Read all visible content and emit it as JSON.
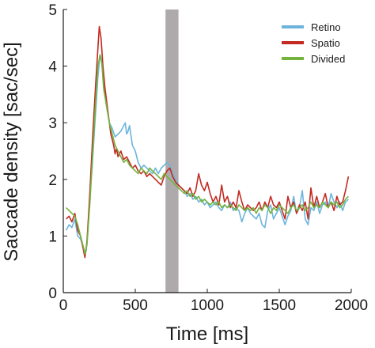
{
  "chart_data": {
    "type": "line",
    "xlabel": "Time [ms]",
    "ylabel": "Saccade density [sac/sec]",
    "xlim": [
      0,
      2000
    ],
    "ylim": [
      0,
      5
    ],
    "xticks": [
      0,
      500,
      1000,
      1500,
      2000
    ],
    "yticks": [
      0,
      1,
      2,
      3,
      4,
      5
    ],
    "shaded_region": {
      "x_start": 710,
      "x_end": 800,
      "color": "#aeaaab"
    },
    "grid": false,
    "legend_position": "top-right",
    "series": [
      {
        "name": "Retino",
        "color": "#6db4dc",
        "points": [
          [
            20,
            1.1
          ],
          [
            40,
            1.2
          ],
          [
            60,
            1.15
          ],
          [
            80,
            1.3
          ],
          [
            100,
            1.0
          ],
          [
            120,
            0.95
          ],
          [
            140,
            0.8
          ],
          [
            150,
            0.7
          ],
          [
            160,
            0.75
          ],
          [
            180,
            1.5
          ],
          [
            200,
            2.2
          ],
          [
            220,
            3.0
          ],
          [
            240,
            3.8
          ],
          [
            255,
            4.2
          ],
          [
            265,
            4.1
          ],
          [
            280,
            3.7
          ],
          [
            300,
            3.3
          ],
          [
            320,
            3.0
          ],
          [
            340,
            2.9
          ],
          [
            360,
            2.75
          ],
          [
            380,
            2.8
          ],
          [
            400,
            2.85
          ],
          [
            420,
            2.95
          ],
          [
            430,
            3.0
          ],
          [
            440,
            2.8
          ],
          [
            450,
            2.85
          ],
          [
            460,
            2.95
          ],
          [
            480,
            2.6
          ],
          [
            500,
            2.5
          ],
          [
            520,
            2.3
          ],
          [
            540,
            2.2
          ],
          [
            560,
            2.25
          ],
          [
            580,
            2.2
          ],
          [
            600,
            2.15
          ],
          [
            620,
            2.1
          ],
          [
            640,
            2.2
          ],
          [
            660,
            2.1
          ],
          [
            680,
            2.2
          ],
          [
            700,
            2.25
          ],
          [
            720,
            2.3
          ],
          [
            740,
            2.25
          ],
          [
            760,
            2.1
          ],
          [
            780,
            2.0
          ],
          [
            800,
            1.9
          ],
          [
            820,
            1.85
          ],
          [
            840,
            1.8
          ],
          [
            860,
            1.7
          ],
          [
            880,
            1.75
          ],
          [
            900,
            1.65
          ],
          [
            920,
            1.7
          ],
          [
            940,
            1.6
          ],
          [
            960,
            1.65
          ],
          [
            980,
            1.55
          ],
          [
            1000,
            1.6
          ],
          [
            1020,
            1.5
          ],
          [
            1040,
            1.55
          ],
          [
            1060,
            1.6
          ],
          [
            1080,
            1.5
          ],
          [
            1100,
            1.45
          ],
          [
            1120,
            1.55
          ],
          [
            1140,
            1.5
          ],
          [
            1160,
            1.6
          ],
          [
            1180,
            1.45
          ],
          [
            1200,
            1.5
          ],
          [
            1220,
            1.45
          ],
          [
            1240,
            1.25
          ],
          [
            1260,
            1.4
          ],
          [
            1280,
            1.5
          ],
          [
            1300,
            1.4
          ],
          [
            1320,
            1.35
          ],
          [
            1340,
            1.3
          ],
          [
            1360,
            1.4
          ],
          [
            1380,
            1.2
          ],
          [
            1400,
            1.15
          ],
          [
            1410,
            1.3
          ],
          [
            1420,
            1.45
          ],
          [
            1440,
            1.55
          ],
          [
            1460,
            1.3
          ],
          [
            1480,
            1.4
          ],
          [
            1500,
            1.5
          ],
          [
            1520,
            1.35
          ],
          [
            1540,
            1.2
          ],
          [
            1560,
            1.35
          ],
          [
            1580,
            1.45
          ],
          [
            1600,
            1.7
          ],
          [
            1620,
            1.4
          ],
          [
            1640,
            1.5
          ],
          [
            1660,
            1.8
          ],
          [
            1680,
            1.3
          ],
          [
            1700,
            1.2
          ],
          [
            1720,
            1.5
          ],
          [
            1740,
            1.45
          ],
          [
            1760,
            1.6
          ],
          [
            1780,
            1.4
          ],
          [
            1800,
            1.55
          ],
          [
            1820,
            1.6
          ],
          [
            1840,
            1.5
          ],
          [
            1860,
            1.75
          ],
          [
            1880,
            1.6
          ],
          [
            1900,
            1.5
          ],
          [
            1920,
            1.6
          ],
          [
            1940,
            1.45
          ],
          [
            1960,
            1.6
          ],
          [
            1980,
            1.65
          ]
        ]
      },
      {
        "name": "Spatio",
        "color": "#c32a22",
        "points": [
          [
            20,
            1.3
          ],
          [
            40,
            1.35
          ],
          [
            60,
            1.25
          ],
          [
            80,
            1.4
          ],
          [
            100,
            1.1
          ],
          [
            120,
            1.0
          ],
          [
            140,
            0.75
          ],
          [
            150,
            0.62
          ],
          [
            165,
            0.9
          ],
          [
            185,
            1.8
          ],
          [
            205,
            2.8
          ],
          [
            225,
            3.7
          ],
          [
            240,
            4.3
          ],
          [
            250,
            4.7
          ],
          [
            262,
            4.5
          ],
          [
            275,
            4.0
          ],
          [
            290,
            3.6
          ],
          [
            310,
            3.2
          ],
          [
            330,
            2.8
          ],
          [
            350,
            2.6
          ],
          [
            360,
            2.45
          ],
          [
            370,
            2.55
          ],
          [
            380,
            2.4
          ],
          [
            400,
            2.5
          ],
          [
            420,
            2.35
          ],
          [
            440,
            2.4
          ],
          [
            460,
            2.3
          ],
          [
            480,
            2.2
          ],
          [
            500,
            2.25
          ],
          [
            520,
            2.15
          ],
          [
            540,
            2.1
          ],
          [
            560,
            2.15
          ],
          [
            580,
            2.05
          ],
          [
            600,
            2.1
          ],
          [
            620,
            2.05
          ],
          [
            640,
            2.0
          ],
          [
            660,
            1.95
          ],
          [
            680,
            1.9
          ],
          [
            700,
            2.05
          ],
          [
            720,
            2.15
          ],
          [
            740,
            2.2
          ],
          [
            760,
            2.05
          ],
          [
            780,
            1.95
          ],
          [
            800,
            1.9
          ],
          [
            820,
            1.85
          ],
          [
            840,
            1.8
          ],
          [
            860,
            1.75
          ],
          [
            880,
            1.85
          ],
          [
            900,
            1.7
          ],
          [
            920,
            1.8
          ],
          [
            940,
            2.1
          ],
          [
            960,
            1.9
          ],
          [
            980,
            1.8
          ],
          [
            1000,
            1.95
          ],
          [
            1020,
            1.75
          ],
          [
            1040,
            1.6
          ],
          [
            1060,
            1.7
          ],
          [
            1080,
            1.55
          ],
          [
            1100,
            1.9
          ],
          [
            1120,
            1.6
          ],
          [
            1140,
            1.7
          ],
          [
            1160,
            1.5
          ],
          [
            1180,
            1.6
          ],
          [
            1200,
            1.5
          ],
          [
            1220,
            1.8
          ],
          [
            1240,
            1.6
          ],
          [
            1260,
            1.45
          ],
          [
            1280,
            1.55
          ],
          [
            1300,
            1.5
          ],
          [
            1320,
            1.45
          ],
          [
            1340,
            1.5
          ],
          [
            1360,
            1.6
          ],
          [
            1380,
            1.45
          ],
          [
            1400,
            1.6
          ],
          [
            1420,
            1.5
          ],
          [
            1440,
            1.7
          ],
          [
            1460,
            1.55
          ],
          [
            1480,
            1.5
          ],
          [
            1500,
            1.6
          ],
          [
            1520,
            1.45
          ],
          [
            1540,
            1.3
          ],
          [
            1560,
            1.7
          ],
          [
            1580,
            1.5
          ],
          [
            1600,
            1.6
          ],
          [
            1620,
            1.4
          ],
          [
            1640,
            1.55
          ],
          [
            1660,
            1.45
          ],
          [
            1680,
            1.6
          ],
          [
            1700,
            1.3
          ],
          [
            1720,
            1.85
          ],
          [
            1740,
            1.5
          ],
          [
            1760,
            1.7
          ],
          [
            1780,
            1.5
          ],
          [
            1800,
            1.6
          ],
          [
            1820,
            1.75
          ],
          [
            1840,
            1.5
          ],
          [
            1860,
            1.6
          ],
          [
            1880,
            1.45
          ],
          [
            1900,
            1.7
          ],
          [
            1920,
            1.55
          ],
          [
            1940,
            1.6
          ],
          [
            1960,
            1.8
          ],
          [
            1980,
            2.05
          ]
        ]
      },
      {
        "name": "Divided",
        "color": "#72b43c",
        "points": [
          [
            20,
            1.5
          ],
          [
            40,
            1.45
          ],
          [
            60,
            1.4
          ],
          [
            80,
            1.35
          ],
          [
            100,
            1.2
          ],
          [
            120,
            1.0
          ],
          [
            140,
            0.8
          ],
          [
            150,
            0.68
          ],
          [
            165,
            0.85
          ],
          [
            185,
            1.6
          ],
          [
            205,
            2.5
          ],
          [
            225,
            3.4
          ],
          [
            240,
            4.0
          ],
          [
            255,
            4.2
          ],
          [
            268,
            4.05
          ],
          [
            280,
            3.6
          ],
          [
            300,
            3.3
          ],
          [
            320,
            3.0
          ],
          [
            340,
            2.8
          ],
          [
            360,
            2.6
          ],
          [
            380,
            2.5
          ],
          [
            400,
            2.4
          ],
          [
            420,
            2.3
          ],
          [
            440,
            2.35
          ],
          [
            460,
            2.25
          ],
          [
            480,
            2.2
          ],
          [
            500,
            2.15
          ],
          [
            520,
            2.1
          ],
          [
            540,
            2.2
          ],
          [
            560,
            2.15
          ],
          [
            580,
            2.1
          ],
          [
            600,
            2.2
          ],
          [
            620,
            2.15
          ],
          [
            640,
            2.1
          ],
          [
            660,
            2.05
          ],
          [
            680,
            2.0
          ],
          [
            700,
            2.1
          ],
          [
            720,
            2.05
          ],
          [
            740,
            2.0
          ],
          [
            760,
            1.95
          ],
          [
            780,
            1.9
          ],
          [
            800,
            1.85
          ],
          [
            820,
            1.8
          ],
          [
            840,
            1.75
          ],
          [
            860,
            1.8
          ],
          [
            880,
            1.7
          ],
          [
            900,
            1.75
          ],
          [
            920,
            1.65
          ],
          [
            940,
            1.7
          ],
          [
            960,
            1.6
          ],
          [
            980,
            1.65
          ],
          [
            1000,
            1.6
          ],
          [
            1020,
            1.55
          ],
          [
            1040,
            1.6
          ],
          [
            1060,
            1.55
          ],
          [
            1080,
            1.6
          ],
          [
            1100,
            1.5
          ],
          [
            1120,
            1.55
          ],
          [
            1140,
            1.5
          ],
          [
            1160,
            1.55
          ],
          [
            1180,
            1.5
          ],
          [
            1200,
            1.45
          ],
          [
            1220,
            1.55
          ],
          [
            1240,
            1.5
          ],
          [
            1260,
            1.45
          ],
          [
            1280,
            1.5
          ],
          [
            1300,
            1.45
          ],
          [
            1320,
            1.5
          ],
          [
            1340,
            1.4
          ],
          [
            1360,
            1.5
          ],
          [
            1380,
            1.45
          ],
          [
            1400,
            1.55
          ],
          [
            1420,
            1.5
          ],
          [
            1440,
            1.4
          ],
          [
            1460,
            1.5
          ],
          [
            1480,
            1.45
          ],
          [
            1500,
            1.55
          ],
          [
            1520,
            1.5
          ],
          [
            1540,
            1.45
          ],
          [
            1560,
            1.4
          ],
          [
            1580,
            1.5
          ],
          [
            1600,
            1.55
          ],
          [
            1620,
            1.45
          ],
          [
            1640,
            1.5
          ],
          [
            1660,
            1.55
          ],
          [
            1680,
            1.45
          ],
          [
            1700,
            1.5
          ],
          [
            1720,
            1.6
          ],
          [
            1740,
            1.5
          ],
          [
            1760,
            1.55
          ],
          [
            1780,
            1.5
          ],
          [
            1800,
            1.6
          ],
          [
            1820,
            1.55
          ],
          [
            1840,
            1.5
          ],
          [
            1860,
            1.6
          ],
          [
            1880,
            1.55
          ],
          [
            1900,
            1.6
          ],
          [
            1920,
            1.5
          ],
          [
            1940,
            1.55
          ],
          [
            1960,
            1.65
          ],
          [
            1980,
            1.7
          ]
        ]
      }
    ]
  }
}
